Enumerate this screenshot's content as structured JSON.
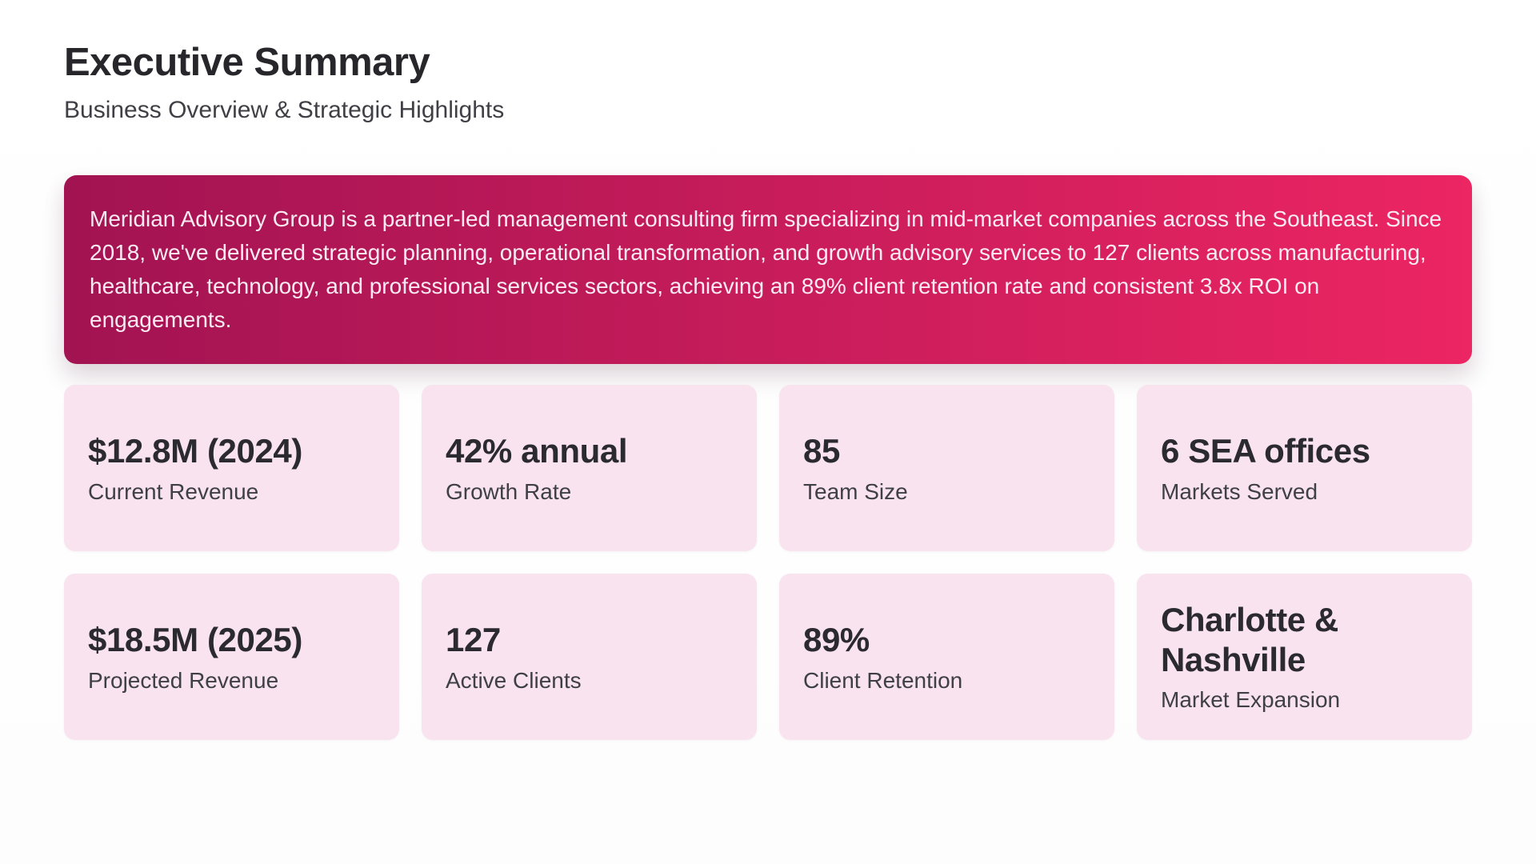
{
  "header": {
    "title": "Executive Summary",
    "subtitle": "Business Overview & Strategic Highlights"
  },
  "banner": {
    "text": "Meridian Advisory Group is a partner-led management consulting firm specializing in mid-market companies across the Southeast. Since 2018, we've delivered strategic planning, operational transformation, and growth advisory services to 127 clients across manufacturing, healthcare, technology, and professional services sectors, achieving an 89% client retention rate and consistent 3.8x ROI on engagements.",
    "gradient_start": "#a21352",
    "gradient_end": "#ec2563",
    "text_color": "#fbeaf2"
  },
  "stats": {
    "card_bg": "#f8e3ee",
    "cards": [
      {
        "value": "$12.8M (2024)",
        "label": "Current Revenue"
      },
      {
        "value": "42% annual",
        "label": "Growth Rate"
      },
      {
        "value": "85",
        "label": "Team Size"
      },
      {
        "value": "6 SEA offices",
        "label": "Markets Served"
      },
      {
        "value": "$18.5M (2025)",
        "label": "Projected Revenue"
      },
      {
        "value": "127",
        "label": "Active Clients"
      },
      {
        "value": "89%",
        "label": "Client Retention"
      },
      {
        "value": "Charlotte & Nashville",
        "label": "Market Expansion"
      }
    ]
  }
}
